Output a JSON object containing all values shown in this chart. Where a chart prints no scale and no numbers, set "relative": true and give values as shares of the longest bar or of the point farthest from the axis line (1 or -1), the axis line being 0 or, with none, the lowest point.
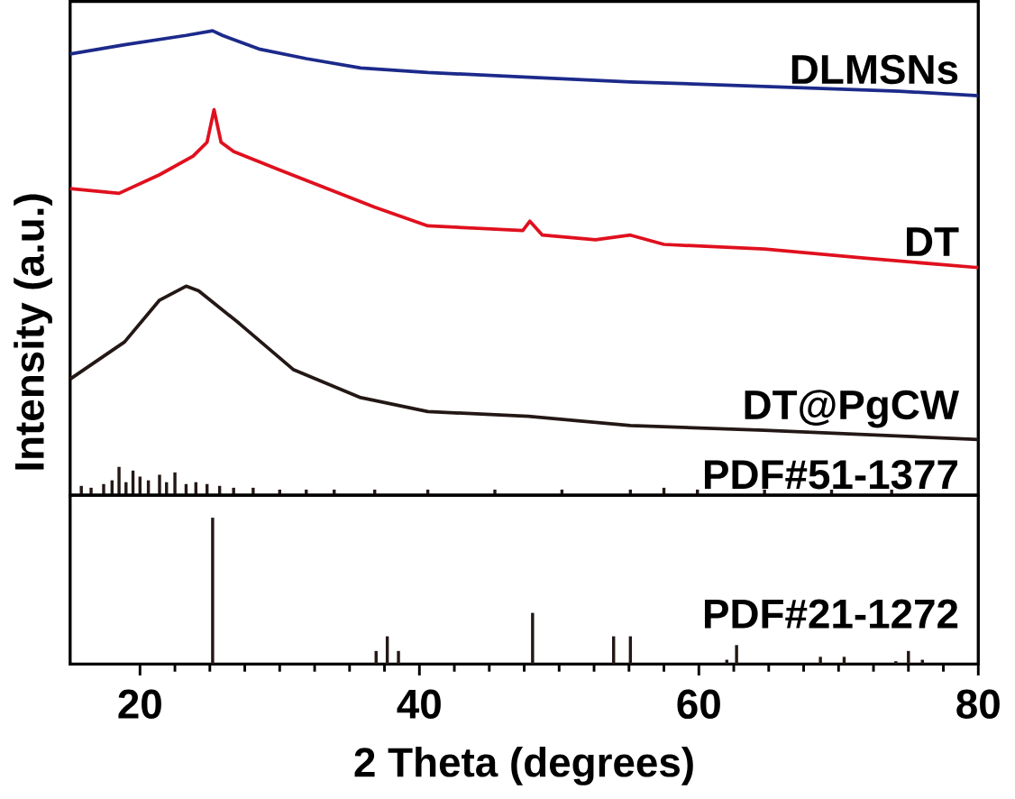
{
  "chart_data": [
    {
      "type": "line",
      "relative": true,
      "ylabel": "Intensity (a.u.)",
      "xlim": [
        15,
        80
      ],
      "xticks": [
        20,
        40,
        60,
        80
      ],
      "tick_labels": false,
      "series": [
        {
          "name": "DLMSNs",
          "color": "#1c2a8a",
          "x": [
            15,
            18.9,
            23.3,
            25.2,
            25.9,
            28.6,
            31.9,
            35.8,
            40.6,
            47.8,
            55.1,
            64.7,
            74.3,
            80
          ],
          "values": [
            0.95,
            0.97,
            0.99,
            1.0,
            0.99,
            0.96,
            0.94,
            0.92,
            0.91,
            0.9,
            0.89,
            0.88,
            0.87,
            0.86
          ]
        },
        {
          "name": "DT",
          "color": "#e0101e",
          "x": [
            15,
            18.5,
            21.4,
            23.8,
            24.8,
            25.3,
            25.8,
            26.7,
            30.0,
            33.4,
            36.8,
            40.6,
            47.4,
            47.9,
            48.8,
            52.6,
            55.1,
            57.5,
            64.7,
            72.0,
            80
          ],
          "values": [
            0.66,
            0.65,
            0.69,
            0.73,
            0.76,
            0.83,
            0.76,
            0.74,
            0.7,
            0.66,
            0.62,
            0.58,
            0.57,
            0.59,
            0.56,
            0.55,
            0.56,
            0.54,
            0.53,
            0.51,
            0.49
          ]
        },
        {
          "name": "DT@PgCW",
          "color": "#231815",
          "x": [
            15,
            18.9,
            21.4,
            23.3,
            24.2,
            27.1,
            31.0,
            35.8,
            40.6,
            47.8,
            55.1,
            64.7,
            80
          ],
          "values": [
            0.25,
            0.33,
            0.42,
            0.45,
            0.44,
            0.37,
            0.27,
            0.21,
            0.18,
            0.17,
            0.15,
            0.14,
            0.12
          ]
        },
        {
          "name": "PDF#51-1377",
          "type": "bar",
          "color": "#231815",
          "x": [
            15.8,
            16.5,
            17.4,
            18.0,
            18.5,
            19.0,
            19.5,
            20.0,
            20.6,
            21.4,
            21.9,
            22.5,
            23.3,
            24.0,
            24.8,
            25.7,
            26.7,
            28.1,
            30.0,
            31.9,
            33.9,
            36.8,
            40.6,
            45.4,
            50.2,
            55.1,
            57.5,
            59.9,
            64.7,
            69.5,
            73.8
          ],
          "values": [
            0.02,
            0.016,
            0.024,
            0.032,
            0.061,
            0.028,
            0.053,
            0.04,
            0.032,
            0.044,
            0.028,
            0.049,
            0.024,
            0.028,
            0.024,
            0.02,
            0.016,
            0.016,
            0.012,
            0.012,
            0.012,
            0.012,
            0.012,
            0.012,
            0.012,
            0.012,
            0.016,
            0.012,
            0.012,
            0.012,
            0.012
          ]
        }
      ]
    },
    {
      "type": "bar",
      "relative": true,
      "xlabel": "2 Theta (degrees)",
      "xlim": [
        15,
        80
      ],
      "xticks": [
        20,
        40,
        60,
        80
      ],
      "series": [
        {
          "name": "PDF#21-1272",
          "color": "#231815",
          "x": [
            25.2,
            36.9,
            37.7,
            38.5,
            48.1,
            53.9,
            55.1,
            62.0,
            62.7,
            68.7,
            70.4,
            74.1,
            75.0,
            76.0
          ],
          "values": [
            1.0,
            0.09,
            0.19,
            0.09,
            0.35,
            0.19,
            0.19,
            0.03,
            0.13,
            0.05,
            0.05,
            0.02,
            0.09,
            0.03
          ]
        }
      ]
    }
  ]
}
